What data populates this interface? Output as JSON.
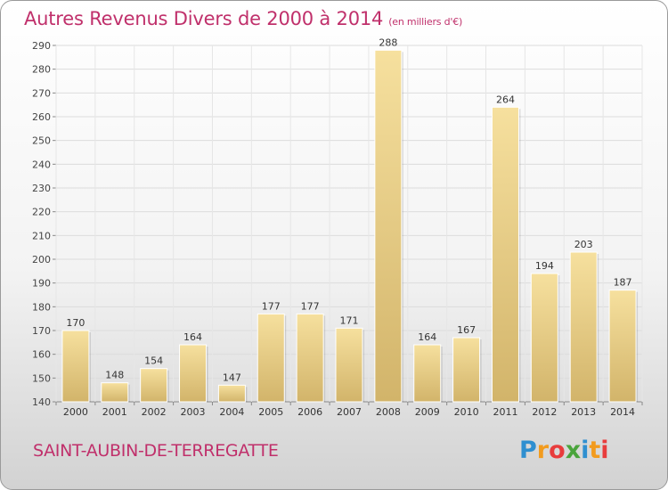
{
  "title": "Autres Revenus Divers de 2000 à 2014",
  "title_unit": "(en milliers d'€)",
  "commune": "SAINT-AUBIN-DE-TERREGATTE",
  "logo": {
    "letters": [
      "P",
      "r",
      "o",
      "x",
      "i",
      "t",
      "i"
    ],
    "colors": [
      "#2f8fd0",
      "#f29b1e",
      "#e83c3c",
      "#4aa43c",
      "#2f8fd0",
      "#f29b1e",
      "#e83c3c"
    ]
  },
  "colors": {
    "title": "#c0306b",
    "bar_light": "#f6e09e",
    "bar_dark": "#d2b46a"
  },
  "chart_data": {
    "type": "bar",
    "title": "Autres Revenus Divers de 2000 à 2014",
    "xlabel": "",
    "ylabel": "",
    "categories": [
      "2000",
      "2001",
      "2002",
      "2003",
      "2004",
      "2005",
      "2006",
      "2007",
      "2008",
      "2009",
      "2010",
      "2011",
      "2012",
      "2013",
      "2014"
    ],
    "values": [
      170,
      148,
      154,
      164,
      147,
      177,
      177,
      171,
      288,
      164,
      167,
      264,
      194,
      203,
      187
    ],
    "ylim": [
      140,
      290
    ],
    "yticks": [
      140,
      150,
      160,
      170,
      180,
      190,
      200,
      210,
      220,
      230,
      240,
      250,
      260,
      270,
      280,
      290
    ],
    "grid": true,
    "legend": "none"
  }
}
